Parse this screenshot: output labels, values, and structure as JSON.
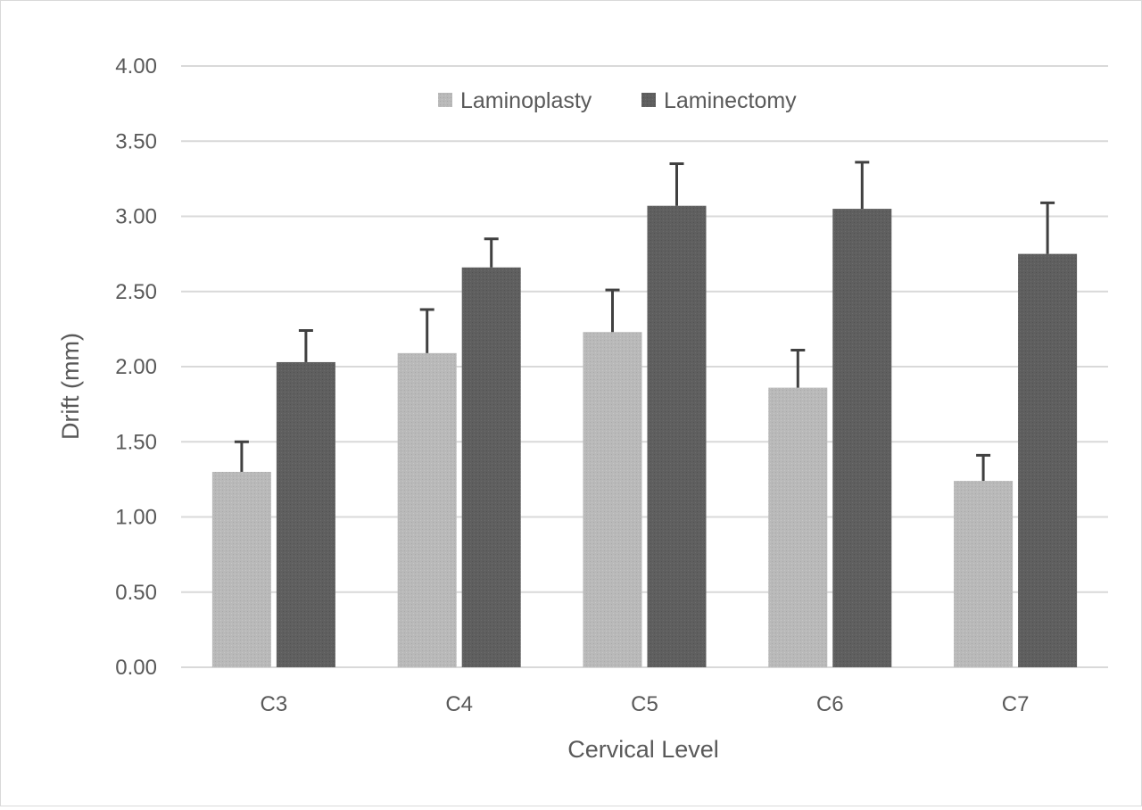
{
  "chart_data": {
    "type": "bar",
    "categories": [
      "C3",
      "C4",
      "C5",
      "C6",
      "C7"
    ],
    "series": [
      {
        "name": "Laminoplasty",
        "color": "#b7b7b7",
        "values": [
          1.3,
          2.09,
          2.23,
          1.86,
          1.24
        ],
        "error": [
          0.2,
          0.29,
          0.28,
          0.25,
          0.17
        ]
      },
      {
        "name": "Laminectomy",
        "color": "#5f5f5f",
        "values": [
          2.03,
          2.66,
          3.07,
          3.05,
          2.75
        ],
        "error": [
          0.21,
          0.19,
          0.28,
          0.31,
          0.34
        ]
      }
    ],
    "xlabel": "Cervical Level",
    "ylabel": "Drift (mm)",
    "ylim": [
      0,
      4
    ],
    "yticks": [
      "0.00",
      "0.50",
      "1.00",
      "1.50",
      "2.00",
      "2.50",
      "3.00",
      "3.50",
      "4.00"
    ],
    "grid": true,
    "legend_position": "top-center",
    "error_bars": true
  }
}
